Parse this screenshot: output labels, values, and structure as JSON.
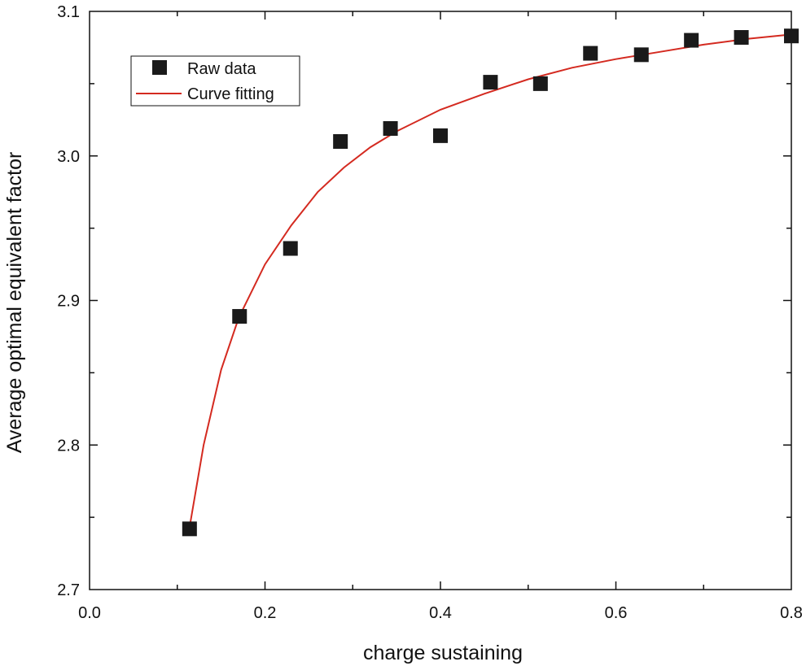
{
  "chart_data": {
    "type": "scatter",
    "xlabel": "charge sustaining",
    "ylabel": "Average optimal equivalent factor",
    "xlim": [
      0.0,
      0.8
    ],
    "ylim": [
      2.7,
      3.1
    ],
    "x_ticks": [
      "0.0",
      "0.2",
      "0.4",
      "0.6",
      "0.8"
    ],
    "y_ticks": [
      "2.7",
      "2.8",
      "2.9",
      "3.0",
      "3.1"
    ],
    "x_tick_values": [
      0.0,
      0.2,
      0.4,
      0.6,
      0.8
    ],
    "y_tick_values": [
      2.7,
      2.8,
      2.9,
      3.0,
      3.1
    ],
    "grid": false,
    "legend_position": "top-left",
    "series": [
      {
        "name": "Raw data",
        "kind": "scatter",
        "marker": "square",
        "color": "#1a1a1a",
        "x": [
          0.114,
          0.171,
          0.229,
          0.286,
          0.343,
          0.4,
          0.457,
          0.514,
          0.571,
          0.629,
          0.686,
          0.743,
          0.8
        ],
        "y": [
          2.742,
          2.889,
          2.936,
          3.01,
          3.019,
          3.014,
          3.051,
          3.05,
          3.071,
          3.07,
          3.08,
          3.082,
          3.083
        ]
      },
      {
        "name": "Curve fitting",
        "kind": "line",
        "color": "#d42a20",
        "x": [
          0.114,
          0.13,
          0.15,
          0.17,
          0.2,
          0.23,
          0.26,
          0.29,
          0.32,
          0.35,
          0.4,
          0.45,
          0.5,
          0.55,
          0.6,
          0.65,
          0.7,
          0.75,
          0.8
        ],
        "y": [
          2.743,
          2.8,
          2.852,
          2.888,
          2.925,
          2.952,
          2.975,
          2.992,
          3.006,
          3.017,
          3.032,
          3.043,
          3.053,
          3.061,
          3.067,
          3.072,
          3.077,
          3.081,
          3.084
        ]
      }
    ]
  }
}
